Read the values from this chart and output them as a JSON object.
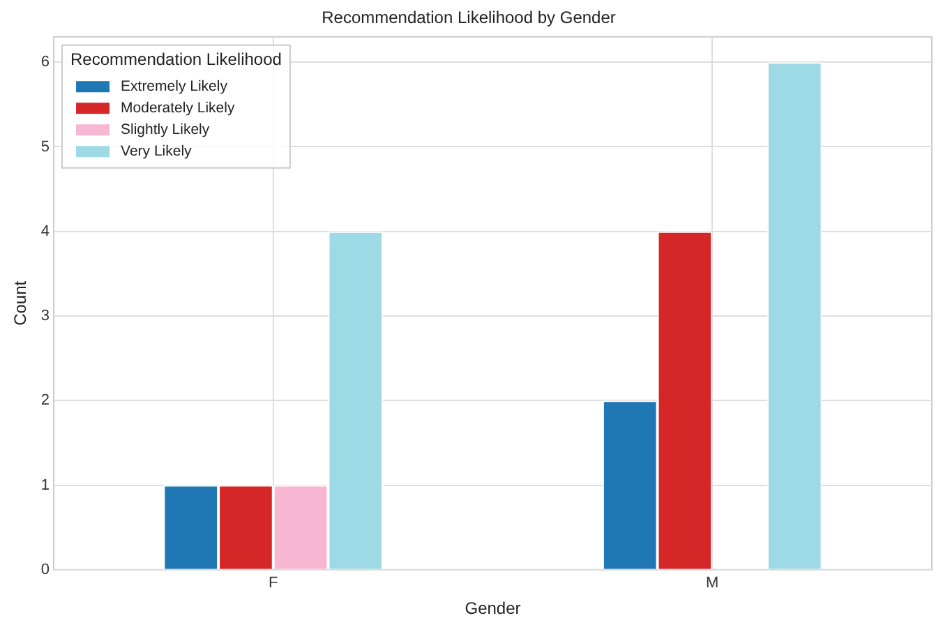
{
  "chart_data": {
    "type": "bar",
    "title": "Recommendation Likelihood by Gender",
    "xlabel": "Gender",
    "ylabel": "Count",
    "legend_title": "Recommendation Likelihood",
    "categories": [
      "F",
      "M"
    ],
    "series": [
      {
        "name": "Extremely Likely",
        "color": "#1f77b4",
        "values": [
          1,
          2
        ]
      },
      {
        "name": "Moderately Likely",
        "color": "#d62728",
        "values": [
          1,
          4
        ]
      },
      {
        "name": "Slightly Likely",
        "color": "#f7b6d2",
        "values": [
          1,
          0
        ]
      },
      {
        "name": "Very Likely",
        "color": "#9edae5",
        "values": [
          4,
          6
        ]
      }
    ],
    "ylim": [
      0,
      6.3
    ],
    "yticks": [
      0,
      1,
      2,
      3,
      4,
      5,
      6
    ],
    "grid": true,
    "legend": "top left"
  }
}
